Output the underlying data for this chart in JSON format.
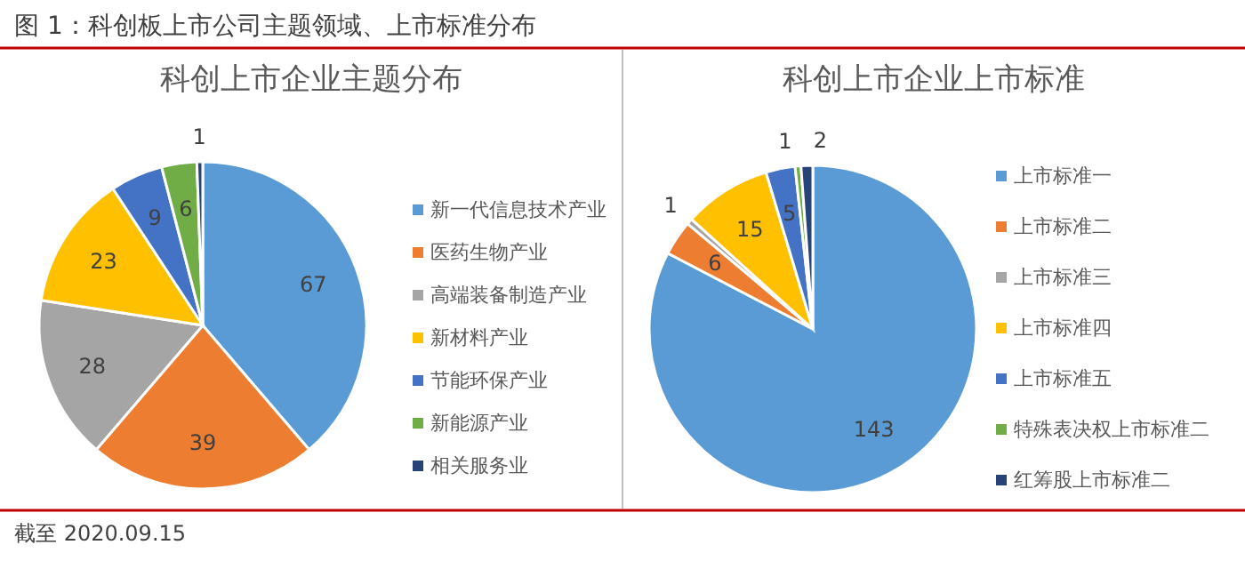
{
  "chart_data": [
    {
      "type": "pie",
      "title": "科创上市企业主题分布",
      "categories": [
        "新一代信息技术产业",
        "医药生物产业",
        "高端装备制造产业",
        "新材料产业",
        "节能环保产业",
        "新能源产业",
        "相关服务业"
      ],
      "values": [
        67,
        39,
        28,
        23,
        9,
        6,
        1
      ],
      "colors": [
        "#5b9bd5",
        "#ed7d31",
        "#a5a5a5",
        "#ffc000",
        "#4472c4",
        "#70ad47",
        "#264478"
      ],
      "data_labels": true,
      "legend": "right",
      "annotations": [
        "图 1：科创板上市公司主题领域、上市标准分布"
      ]
    },
    {
      "type": "pie",
      "title": "科创上市企业上市标准",
      "categories": [
        "上市标准一",
        "上市标准二",
        "上市标准三",
        "上市标准四",
        "上市标准五",
        "特殊表决权上市标准二",
        "红筹股上市标准二"
      ],
      "values": [
        143,
        6,
        1,
        15,
        5,
        1,
        2
      ],
      "colors": [
        "#5b9bd5",
        "#ed7d31",
        "#a5a5a5",
        "#ffc000",
        "#4472c4",
        "#70ad47",
        "#264478"
      ],
      "data_labels": true,
      "legend": "right",
      "annotations": [
        "截至 2020.09.15"
      ]
    }
  ]
}
